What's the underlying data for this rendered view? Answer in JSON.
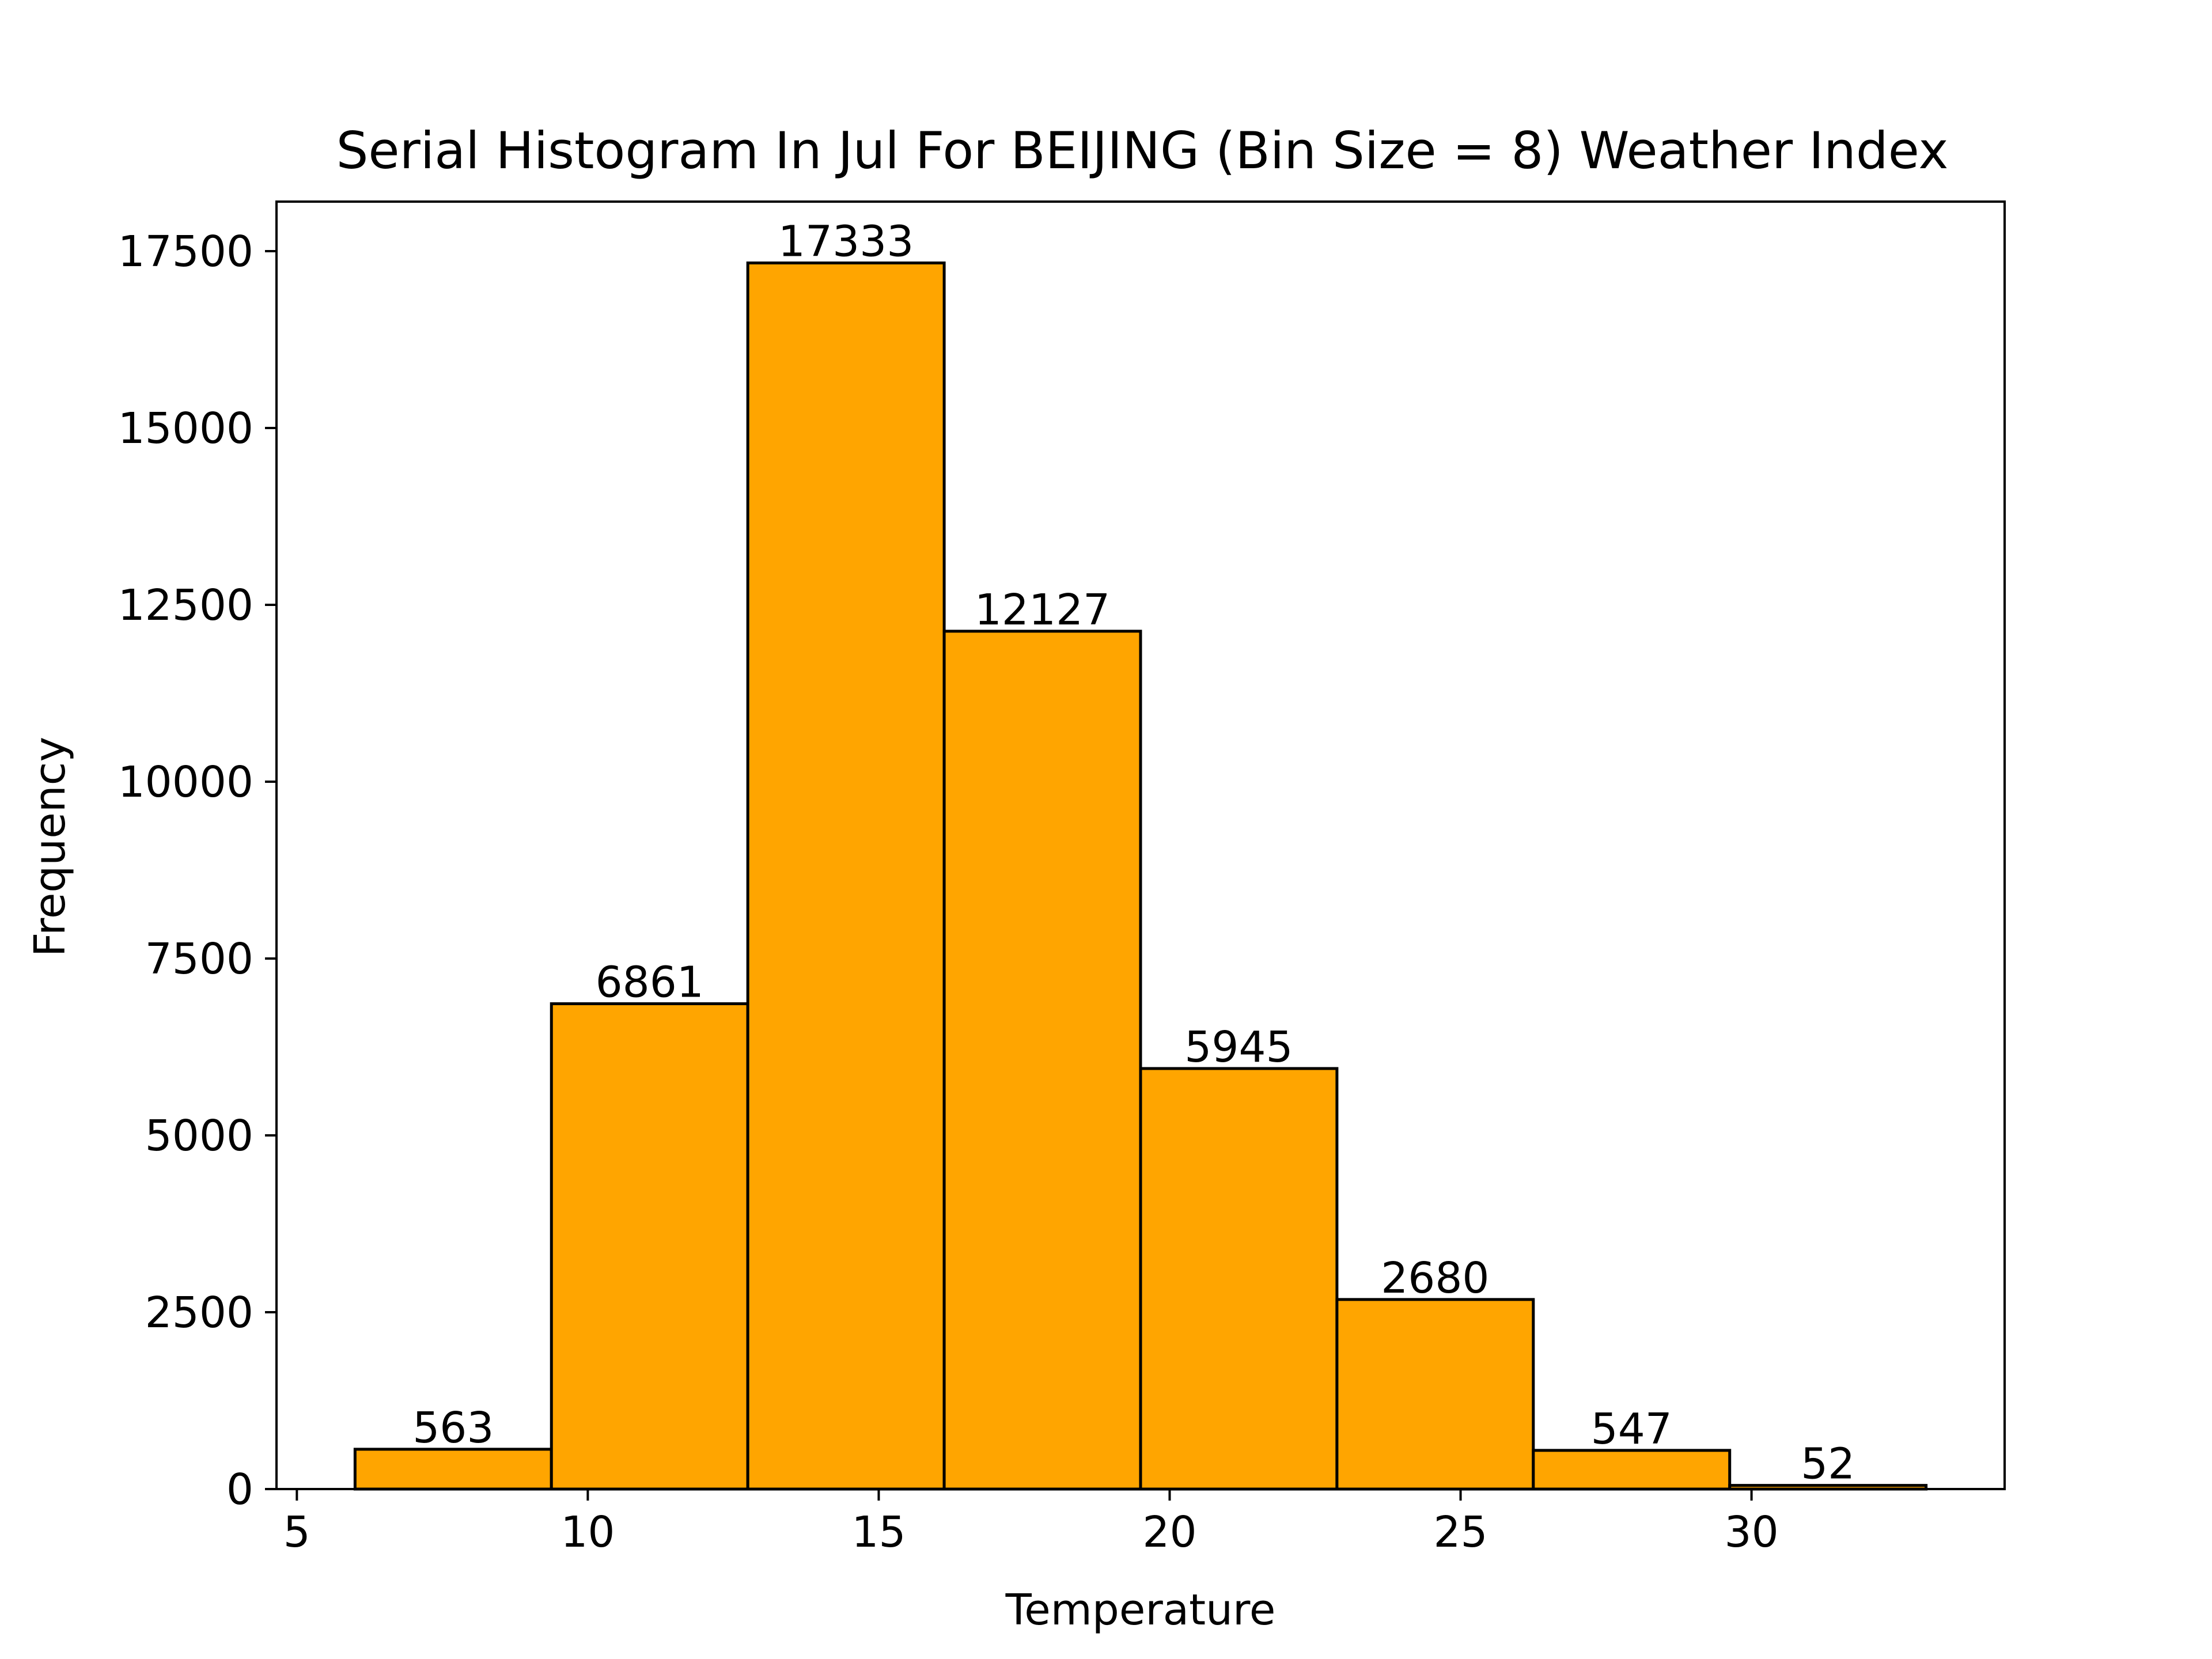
{
  "chart_data": {
    "type": "bar",
    "title": "Serial Histogram In Jul For BEIJING (Bin Size = 8) Weather Index",
    "xlabel": "Temperature",
    "ylabel": "Frequency",
    "bin_edges": [
      6.0,
      9.375,
      12.75,
      16.125,
      19.5,
      22.875,
      26.25,
      29.625,
      33.0
    ],
    "values": [
      563,
      6861,
      17333,
      12127,
      5945,
      2680,
      547,
      52
    ],
    "value_labels": [
      "563",
      "6861",
      "17333",
      "12127",
      "5945",
      "2680",
      "547",
      "52"
    ],
    "xlim": [
      4.65,
      34.35
    ],
    "ylim": [
      0,
      18200
    ],
    "xticks": [
      5,
      10,
      15,
      20,
      25,
      30
    ],
    "xtick_labels": [
      "5",
      "10",
      "15",
      "20",
      "25",
      "30"
    ],
    "yticks": [
      0,
      2500,
      5000,
      7500,
      10000,
      12500,
      15000,
      17500
    ],
    "ytick_labels": [
      "0",
      "2500",
      "5000",
      "7500",
      "10000",
      "12500",
      "15000",
      "17500"
    ],
    "grid": false,
    "legend": "none",
    "colors": {
      "bar_fill": "#FFA500",
      "bar_edge": "#000000"
    }
  }
}
